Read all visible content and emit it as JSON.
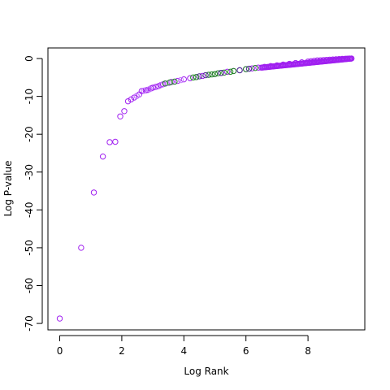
{
  "chart_data": {
    "type": "scatter",
    "title": "",
    "xlabel": "Log Rank",
    "ylabel": "Log P-value",
    "xlim": [
      -0.38,
      9.83
    ],
    "ylim": [
      -71.7,
      2.8
    ],
    "xticks": [
      0,
      2,
      4,
      6,
      8
    ],
    "yticks": [
      0,
      -10,
      -20,
      -30,
      -40,
      -50,
      -60,
      -70
    ],
    "xtick_labels": [
      "0",
      "2",
      "4",
      "6",
      "8"
    ],
    "ytick_labels": [
      "0",
      "-10",
      "-20",
      "-30",
      "-40",
      "-50",
      "-60",
      "-70"
    ],
    "grid": false,
    "legend": "none",
    "marker": "open-circle",
    "colors": {
      "primary": "#a020f0",
      "light": "#c77dff",
      "secondary": "#228b22",
      "tertiary": "#4a2d8c"
    },
    "series": [
      {
        "color_key": "primary",
        "x": [
          0.0,
          0.69,
          1.1,
          1.39,
          1.61,
          1.79,
          1.95,
          2.08,
          2.2,
          2.3,
          2.4,
          2.48,
          2.56,
          2.64,
          2.71,
          2.77,
          2.83,
          2.89,
          2.94,
          3.0,
          3.09,
          3.18,
          3.26,
          3.33,
          3.4,
          3.6,
          3.8,
          4.0,
          4.2,
          4.4,
          4.6,
          4.8,
          5.0,
          5.2,
          5.4,
          5.6,
          5.8,
          6.0,
          6.2,
          6.4,
          6.6,
          6.8,
          7.0,
          7.2,
          7.4,
          7.6,
          7.8,
          8.0,
          8.1,
          8.2,
          8.3,
          8.4,
          8.5,
          8.6,
          8.7,
          8.8,
          8.9,
          9.0,
          9.1,
          9.2,
          9.25,
          9.3,
          9.35,
          9.4
        ],
        "y": [
          -68.7,
          -50.0,
          -35.4,
          -25.9,
          -22.1,
          -22.0,
          -15.3,
          -13.9,
          -11.3,
          -10.8,
          -10.3,
          -9.9,
          -9.5,
          -8.6,
          -8.5,
          -8.4,
          -8.3,
          -8.1,
          -7.9,
          -7.7,
          -7.5,
          -7.3,
          -7.0,
          -6.8,
          -6.6,
          -6.2,
          -5.9,
          -5.5,
          -5.2,
          -4.9,
          -4.6,
          -4.3,
          -4.1,
          -3.8,
          -3.5,
          -3.3,
          -3.1,
          -2.8,
          -2.6,
          -2.4,
          -2.2,
          -2.0,
          -1.8,
          -1.6,
          -1.4,
          -1.2,
          -1.0,
          -0.8,
          -0.7,
          -0.6,
          -0.5,
          -0.45,
          -0.4,
          -0.35,
          -0.3,
          -0.25,
          -0.2,
          -0.15,
          -0.1,
          -0.07,
          -0.05,
          -0.03,
          -0.01,
          0.0
        ]
      },
      {
        "color_key": "light",
        "x": [
          2.48,
          2.71,
          2.89,
          3.3,
          3.5,
          3.7,
          3.9
        ],
        "y": [
          -9.9,
          -8.5,
          -8.1,
          -6.9,
          -6.5,
          -6.1,
          -5.7
        ]
      },
      {
        "color_key": "secondary",
        "x": [
          3.4,
          3.55,
          3.7,
          4.3,
          4.4,
          4.8,
          4.9,
          5.0,
          5.1,
          5.3,
          5.5,
          5.6,
          6.0,
          6.3
        ],
        "y": [
          -6.6,
          -6.3,
          -6.1,
          -5.0,
          -4.9,
          -4.3,
          -4.2,
          -4.1,
          -3.9,
          -3.7,
          -3.5,
          -3.3,
          -2.8,
          -2.5
        ]
      },
      {
        "color_key": "tertiary",
        "x": [
          4.5,
          4.7,
          5.2,
          5.8,
          6.1
        ],
        "y": [
          -4.7,
          -4.4,
          -3.8,
          -3.1,
          -2.7
        ]
      }
    ]
  }
}
